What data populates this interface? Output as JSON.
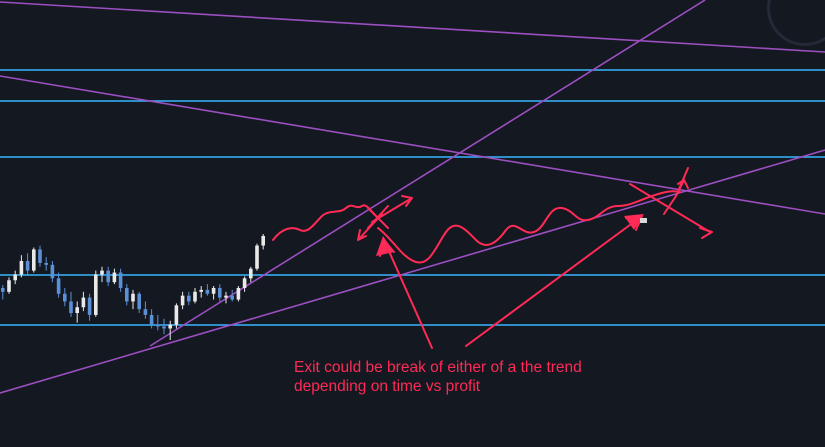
{
  "annotation": {
    "line1": "Exit could be break of either of a the trend",
    "line2": "depending on time vs profit"
  },
  "colors": {
    "background": "#141821",
    "bull_candle": "#e9e9e9",
    "bear_candle": "#5b8fd6",
    "horizontal_level": "#38b6ff",
    "trendline": "#9b4fc0",
    "annotation": "#ff2a55"
  },
  "chart_data": {
    "type": "candlestick",
    "title": "",
    "xlabel": "",
    "ylabel": "",
    "candles": [
      {
        "o": 0.44,
        "h": 0.47,
        "l": 0.32,
        "c": 0.4
      },
      {
        "o": 0.4,
        "h": 0.55,
        "l": 0.38,
        "c": 0.52
      },
      {
        "o": 0.52,
        "h": 0.62,
        "l": 0.48,
        "c": 0.58
      },
      {
        "o": 0.58,
        "h": 0.78,
        "l": 0.55,
        "c": 0.72
      },
      {
        "o": 0.72,
        "h": 0.8,
        "l": 0.58,
        "c": 0.62
      },
      {
        "o": 0.62,
        "h": 0.86,
        "l": 0.6,
        "c": 0.84
      },
      {
        "o": 0.84,
        "h": 0.88,
        "l": 0.66,
        "c": 0.7
      },
      {
        "o": 0.7,
        "h": 0.76,
        "l": 0.62,
        "c": 0.68
      },
      {
        "o": 0.68,
        "h": 0.72,
        "l": 0.5,
        "c": 0.54
      },
      {
        "o": 0.54,
        "h": 0.6,
        "l": 0.34,
        "c": 0.38
      },
      {
        "o": 0.38,
        "h": 0.44,
        "l": 0.25,
        "c": 0.3
      },
      {
        "o": 0.3,
        "h": 0.4,
        "l": 0.14,
        "c": 0.18
      },
      {
        "o": 0.18,
        "h": 0.3,
        "l": 0.08,
        "c": 0.24
      },
      {
        "o": 0.24,
        "h": 0.4,
        "l": 0.2,
        "c": 0.34
      },
      {
        "o": 0.34,
        "h": 0.38,
        "l": 0.1,
        "c": 0.16
      },
      {
        "o": 0.16,
        "h": 0.62,
        "l": 0.14,
        "c": 0.58
      },
      {
        "o": 0.58,
        "h": 0.66,
        "l": 0.5,
        "c": 0.62
      },
      {
        "o": 0.62,
        "h": 0.66,
        "l": 0.46,
        "c": 0.5
      },
      {
        "o": 0.5,
        "h": 0.64,
        "l": 0.48,
        "c": 0.6
      },
      {
        "o": 0.6,
        "h": 0.64,
        "l": 0.4,
        "c": 0.44
      },
      {
        "o": 0.44,
        "h": 0.48,
        "l": 0.26,
        "c": 0.3
      },
      {
        "o": 0.3,
        "h": 0.42,
        "l": 0.22,
        "c": 0.38
      },
      {
        "o": 0.38,
        "h": 0.4,
        "l": 0.18,
        "c": 0.22
      },
      {
        "o": 0.22,
        "h": 0.3,
        "l": 0.12,
        "c": 0.16
      },
      {
        "o": 0.16,
        "h": 0.22,
        "l": 0.02,
        "c": 0.06
      },
      {
        "o": 0.06,
        "h": 0.16,
        "l": 0.0,
        "c": 0.04
      },
      {
        "o": 0.04,
        "h": 0.12,
        "l": -0.04,
        "c": 0.02
      },
      {
        "o": 0.02,
        "h": 0.1,
        "l": -0.1,
        "c": 0.06
      },
      {
        "o": 0.06,
        "h": 0.28,
        "l": 0.02,
        "c": 0.26
      },
      {
        "o": 0.26,
        "h": 0.4,
        "l": 0.22,
        "c": 0.36
      },
      {
        "o": 0.36,
        "h": 0.4,
        "l": 0.26,
        "c": 0.3
      },
      {
        "o": 0.3,
        "h": 0.44,
        "l": 0.28,
        "c": 0.4
      },
      {
        "o": 0.4,
        "h": 0.46,
        "l": 0.34,
        "c": 0.42
      },
      {
        "o": 0.42,
        "h": 0.48,
        "l": 0.36,
        "c": 0.38
      },
      {
        "o": 0.38,
        "h": 0.46,
        "l": 0.32,
        "c": 0.44
      },
      {
        "o": 0.44,
        "h": 0.48,
        "l": 0.3,
        "c": 0.34
      },
      {
        "o": 0.34,
        "h": 0.4,
        "l": 0.28,
        "c": 0.36
      },
      {
        "o": 0.36,
        "h": 0.42,
        "l": 0.3,
        "c": 0.32
      },
      {
        "o": 0.32,
        "h": 0.46,
        "l": 0.3,
        "c": 0.44
      },
      {
        "o": 0.44,
        "h": 0.56,
        "l": 0.4,
        "c": 0.54
      },
      {
        "o": 0.54,
        "h": 0.66,
        "l": 0.5,
        "c": 0.64
      },
      {
        "o": 0.64,
        "h": 0.9,
        "l": 0.62,
        "c": 0.88
      },
      {
        "o": 0.88,
        "h": 1.0,
        "l": 0.84,
        "c": 0.98
      }
    ]
  }
}
